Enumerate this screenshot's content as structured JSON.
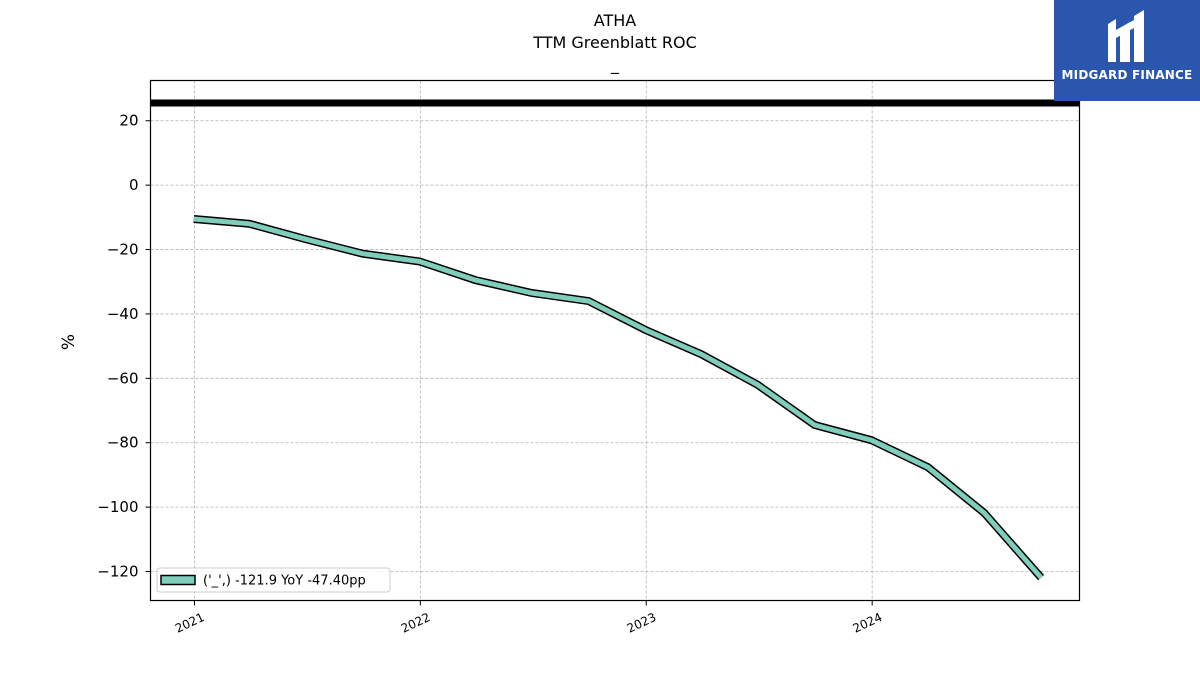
{
  "header": {
    "ticker": "ATHA",
    "metric": "TTM Greenblatt ROC",
    "subtitle": "_"
  },
  "logo": {
    "text": "MIDGARD FINANCE",
    "background": "#2a56ad"
  },
  "chart_data": {
    "type": "line",
    "title": "ATHA",
    "subtitle": "TTM Greenblatt ROC",
    "ylabel": "%",
    "xlabel": "",
    "x": [
      "2020-12-31",
      "2021-03-31",
      "2021-06-30",
      "2021-09-30",
      "2021-12-31",
      "2022-03-31",
      "2022-06-30",
      "2022-09-30",
      "2022-12-31",
      "2023-03-31",
      "2023-06-30",
      "2023-09-30",
      "2023-12-31",
      "2024-03-31",
      "2024-06-30",
      "2024-09-30"
    ],
    "series": [
      {
        "name": "('_',) -121.9 YoY -47.40pp",
        "values": [
          -10.5,
          -12.0,
          -16.8,
          -21.3,
          -23.7,
          -29.5,
          -33.5,
          -36.0,
          -45.0,
          -52.5,
          -62.0,
          -74.5,
          -79.2,
          -87.6,
          -101.8,
          -121.9
        ],
        "color": "#7fcdbb",
        "edge_color": "#000000"
      }
    ],
    "reference_line": {
      "y": 25.5,
      "color": "#000000"
    },
    "yticks": [
      20,
      0,
      -20,
      -40,
      -60,
      -80,
      -100,
      -120
    ],
    "ytick_labels": [
      "20",
      "0",
      "−20",
      "−40",
      "−60",
      "−80",
      "−100",
      "−120"
    ],
    "xticks": [
      "2021-01-01",
      "2022-01-01",
      "2023-01-01",
      "2024-01-01"
    ],
    "xtick_labels": [
      "2021",
      "2022",
      "2023",
      "2024"
    ],
    "xlim": [
      "2020-10-22",
      "2024-12-01"
    ],
    "ylim": [
      -129,
      32.5
    ],
    "grid": true,
    "legend_position": "lower-left"
  }
}
